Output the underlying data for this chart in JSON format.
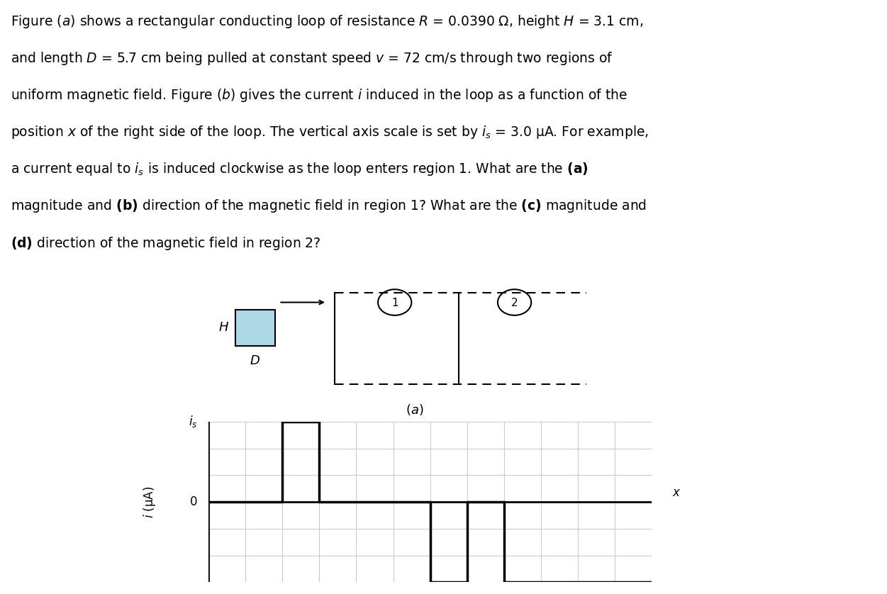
{
  "background_color": "#ffffff",
  "text_color": "#000000",
  "loop_fill": "#add8e6",
  "loop_stroke": "#000000",
  "grid_color": "#cccccc",
  "waveform_color": "#000000",
  "lines": [
    "Figure $(a)$ shows a rectangular conducting loop of resistance $R$ = 0.0390 Ω, height $H$ = 3.1 cm,",
    "and length $D$ = 5.7 cm being pulled at constant speed $v$ = 72 cm/s through two regions of",
    "uniform magnetic field. Figure $(b)$ gives the current $i$ induced in the loop as a function of the",
    "position $x$ of the right side of the loop. The vertical axis scale is set by $i_s$ = 3.0 μA. For example,",
    "a current equal to $i_s$ is induced clockwise as the loop enters region 1. What are the $\\mathbf{(a)}$",
    "magnitude and $\\mathbf{(b)}$ direction of the magnetic field in region 1? What are the $\\mathbf{(c)}$ magnitude and",
    "$\\mathbf{(d)}$ direction of the magnetic field in region 2?"
  ],
  "xs_wave": [
    0,
    2,
    2,
    3,
    3,
    6,
    6,
    7,
    7,
    8,
    8,
    12
  ],
  "ys_wave": [
    0,
    0,
    3,
    3,
    0,
    0,
    -3,
    -3,
    0,
    0,
    -3,
    -3
  ]
}
